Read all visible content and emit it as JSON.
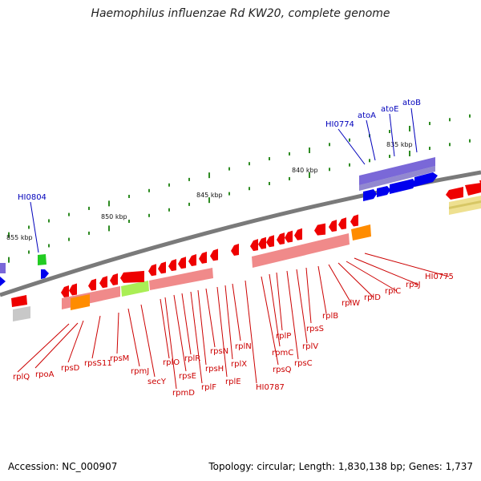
{
  "title": "Haemophilus influenzae Rd KW20, complete genome",
  "footer": {
    "accession": "Accession: NC_000907",
    "summary": "Topology: circular; Length: 1,830,138 bp; Genes: 1,737"
  },
  "colors": {
    "backbone": "#7a7a7a",
    "tick": "#2e8b22",
    "cds_forward": "#0000ee",
    "cds_reverse": "#ee0000",
    "forward_feature": "#7060d0",
    "reverse_feature": "#f08080",
    "label_forward": "#0000bb",
    "label_reverse": "#cc0000"
  },
  "scale_labels": [
    "835 kbp",
    "840 kbp",
    "845 kbp",
    "850 kbp",
    "855 kbp"
  ],
  "forward_labels": [
    "HI0804",
    "HI0774",
    "atoA",
    "atoE",
    "atoB"
  ],
  "reverse_labels": [
    "HI0775",
    "rpsJ",
    "rplC",
    "rplD",
    "rplW",
    "rplB",
    "rpsS",
    "rplV",
    "rpsC",
    "rplP",
    "rpmC",
    "rpsQ",
    "HI0787",
    "rplN",
    "rplX",
    "rplE",
    "rpsN",
    "rpsH",
    "rplF",
    "rplR",
    "rpsE",
    "rpmD",
    "rplO",
    "secY",
    "rpmJ",
    "rpsM",
    "rpsS11",
    "rpsD",
    "rpoA",
    "rplQ"
  ]
}
